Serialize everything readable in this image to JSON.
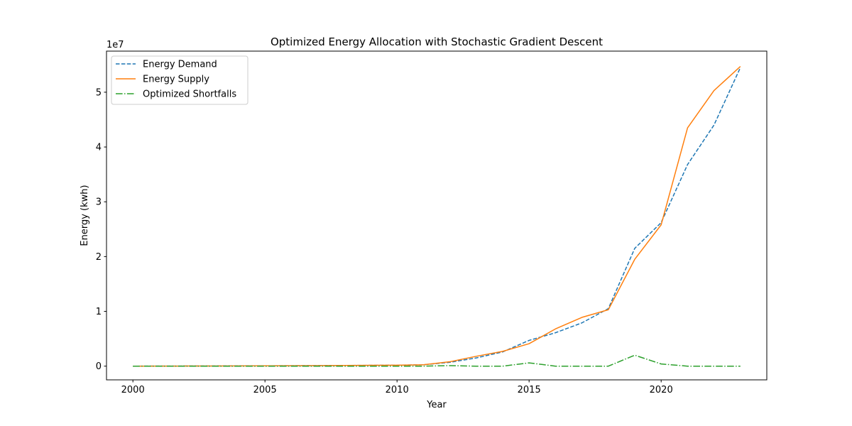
{
  "chart_data": {
    "type": "line",
    "title": "Optimized Energy Allocation with Stochastic Gradient Descent",
    "xlabel": "Year",
    "ylabel": "Energy (kwh)",
    "y_offset_label": "1e7",
    "xlim": [
      1999,
      2024
    ],
    "ylim": [
      -2500000,
      57500000
    ],
    "x_ticks": [
      2000,
      2005,
      2010,
      2015,
      2020
    ],
    "y_ticks": [
      0,
      10000000,
      20000000,
      30000000,
      40000000,
      50000000
    ],
    "y_tick_labels": [
      "0",
      "1",
      "2",
      "3",
      "4",
      "5"
    ],
    "grid": false,
    "legend_position": "upper-left",
    "x": [
      2000,
      2001,
      2002,
      2003,
      2004,
      2005,
      2006,
      2007,
      2008,
      2009,
      2010,
      2011,
      2012,
      2013,
      2014,
      2015,
      2016,
      2017,
      2018,
      2019,
      2020,
      2021,
      2022,
      2023
    ],
    "series": [
      {
        "name": "Energy Demand",
        "color": "#1f77b4",
        "dash": "dashed",
        "values": [
          0,
          10000,
          20000,
          30000,
          50000,
          60000,
          80000,
          100000,
          120000,
          150000,
          180000,
          250000,
          700000,
          1500000,
          2600000,
          4700000,
          6100000,
          7900000,
          10500000,
          21500000,
          26200000,
          36800000,
          44000000,
          54500000
        ]
      },
      {
        "name": "Energy Supply",
        "color": "#ff7f0e",
        "dash": "solid",
        "values": [
          0,
          10000,
          20000,
          30000,
          50000,
          60000,
          80000,
          100000,
          120000,
          150000,
          180000,
          250000,
          800000,
          1800000,
          2700000,
          4100000,
          6800000,
          8900000,
          10300000,
          19500000,
          25800000,
          43500000,
          50300000,
          54700000
        ]
      },
      {
        "name": "Optimized Shortfalls",
        "color": "#2ca02c",
        "dash": "dashdot",
        "values": [
          0,
          0,
          0,
          0,
          0,
          0,
          0,
          0,
          0,
          0,
          0,
          0,
          100000,
          0,
          0,
          600000,
          0,
          0,
          0,
          2000000,
          400000,
          0,
          0,
          0
        ]
      }
    ]
  }
}
